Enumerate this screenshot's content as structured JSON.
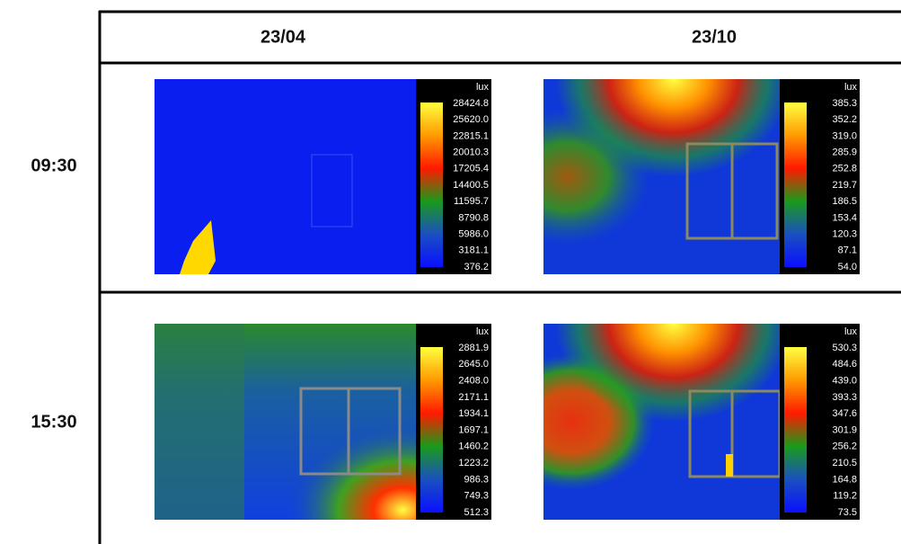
{
  "table": {
    "columns": [
      "23/04",
      "23/10"
    ],
    "rows": [
      {
        "label": "09:30",
        "cells": [
          {
            "unit": "lux",
            "scale": [
              "28424.8",
              "25620.0",
              "22815.1",
              "20010.3",
              "17205.4",
              "14400.5",
              "11595.7",
              "8790.8",
              "5986.0",
              "3181.1",
              "376.2"
            ]
          },
          {
            "unit": "lux",
            "scale": [
              "385.3",
              "352.2",
              "319.0",
              "285.9",
              "252.8",
              "219.7",
              "186.5",
              "153.4",
              "120.3",
              "87.1",
              "54.0"
            ]
          }
        ]
      },
      {
        "label": "15:30",
        "cells": [
          {
            "unit": "lux",
            "scale": [
              "2881.9",
              "2645.0",
              "2408.0",
              "2171.1",
              "1934.1",
              "1697.1",
              "1460.2",
              "1223.2",
              "986.3",
              "749.3",
              "512.3"
            ]
          },
          {
            "unit": "lux",
            "scale": [
              "530.3",
              "484.6",
              "439.0",
              "393.3",
              "347.6",
              "301.9",
              "256.2",
              "210.5",
              "164.8",
              "119.2",
              "73.5"
            ]
          }
        ]
      }
    ]
  }
}
